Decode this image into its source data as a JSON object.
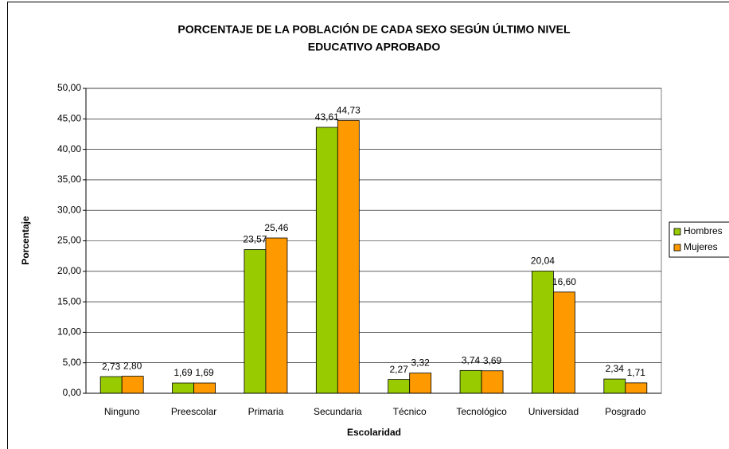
{
  "chart_data": {
    "type": "bar",
    "title": [
      "PORCENTAJE DE LA POBLACIÓN DE CADA SEXO SEGÚN ÚLTIMO NIVEL",
      "EDUCATIVO APROBADO"
    ],
    "x_label": "Escolaridad",
    "y_label": "Porcentaje",
    "categories": [
      "Ninguno",
      "Preescolar",
      "Primaria",
      "Secundaria",
      "Técnico",
      "Tecnológico",
      "Universidad",
      "Posgrado"
    ],
    "series": [
      {
        "name": "Hombres",
        "color": "#99cc00",
        "values": [
          2.73,
          1.69,
          23.57,
          43.61,
          2.27,
          3.74,
          20.04,
          2.34
        ],
        "value_labels": [
          "2,73",
          "1,69",
          "23,57",
          "43,61",
          "2,27",
          "3,74",
          "20,04",
          "2,34"
        ]
      },
      {
        "name": "Mujeres",
        "color": "#ff9900",
        "values": [
          2.8,
          1.69,
          25.46,
          44.73,
          3.32,
          3.69,
          16.6,
          1.71
        ],
        "value_labels": [
          "2,80",
          "1,69",
          "25,46",
          "44,73",
          "3,32",
          "3,69",
          "16,60",
          "1,71"
        ]
      }
    ],
    "ylim": [
      0,
      50
    ],
    "yticks": [
      {
        "value": 0,
        "label": "0,00"
      },
      {
        "value": 5,
        "label": "5,00"
      },
      {
        "value": 10,
        "label": "10,00"
      },
      {
        "value": 15,
        "label": "15,00"
      },
      {
        "value": 20,
        "label": "20,00"
      },
      {
        "value": 25,
        "label": "25,00"
      },
      {
        "value": 30,
        "label": "30,00"
      },
      {
        "value": 35,
        "label": "35,00"
      },
      {
        "value": 40,
        "label": "40,00"
      },
      {
        "value": 45,
        "label": "45,00"
      },
      {
        "value": 50,
        "label": "50,00"
      }
    ],
    "grid": true,
    "legend": "right"
  }
}
